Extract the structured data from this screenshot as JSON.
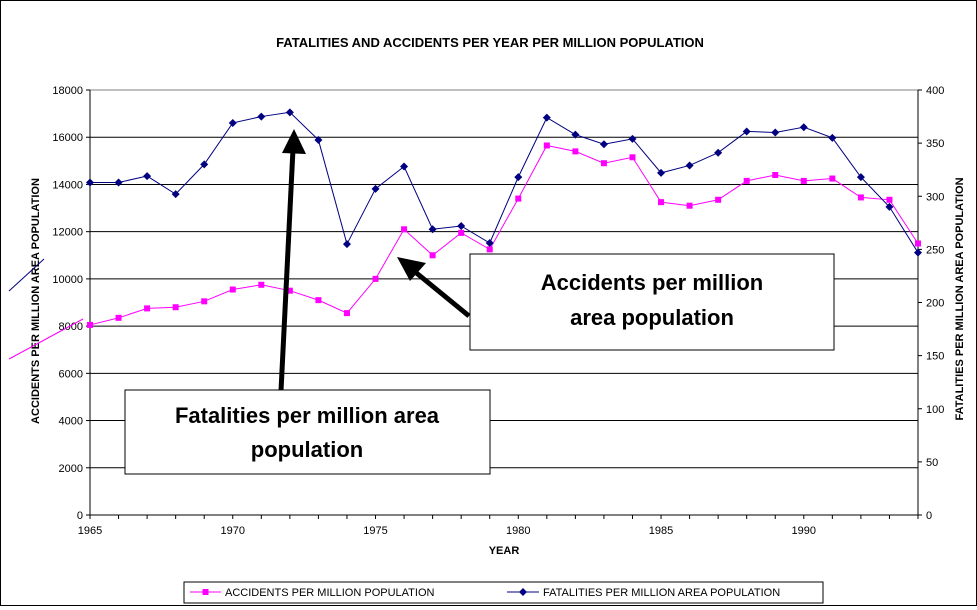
{
  "chart_data": {
    "type": "line",
    "title": "FATALITIES AND ACCIDENTS PER YEAR PER MILLION  POPULATION",
    "xlabel": "YEAR",
    "ylabel_left": "ACCIDENTS PER MILLION AREA POPULATION",
    "ylabel_right": "FATALITIES PER MILLION AREA POPULATION",
    "xlim": [
      1965,
      1994
    ],
    "x_ticks": [
      1965,
      1970,
      1975,
      1980,
      1985,
      1990
    ],
    "ylim_left": [
      0,
      18000
    ],
    "y_ticks_left": [
      0,
      2000,
      4000,
      6000,
      8000,
      10000,
      12000,
      14000,
      16000,
      18000
    ],
    "ylim_right": [
      0,
      400
    ],
    "y_ticks_right": [
      0,
      50,
      100,
      150,
      200,
      250,
      300,
      350,
      400
    ],
    "grid": "horizontal",
    "legend_position": "bottom",
    "x": [
      1965,
      1966,
      1967,
      1968,
      1969,
      1970,
      1971,
      1972,
      1973,
      1974,
      1975,
      1976,
      1977,
      1978,
      1979,
      1980,
      1981,
      1982,
      1983,
      1984,
      1985,
      1986,
      1987,
      1988,
      1989,
      1990,
      1991,
      1992,
      1993,
      1994
    ],
    "series": [
      {
        "name": "ACCIDENTS PER MILLION POPULATION",
        "axis": "left",
        "color": "#ff00ff",
        "marker": "square",
        "values": [
          8050,
          8350,
          8750,
          8800,
          9050,
          9550,
          9750,
          9500,
          9100,
          8550,
          10000,
          12100,
          11000,
          11950,
          11250,
          13400,
          15650,
          15400,
          14900,
          15150,
          13250,
          13100,
          13350,
          14150,
          14400,
          14150,
          14250,
          13450,
          13350,
          11500
        ]
      },
      {
        "name": "FATALITIES PER MILLION AREA POPULATION",
        "axis": "right",
        "color": "#000080",
        "marker": "diamond",
        "values": [
          313,
          313,
          319,
          302,
          330,
          369,
          375,
          379,
          353,
          255,
          307,
          328,
          269,
          272,
          256,
          318,
          374,
          358,
          349,
          354,
          322,
          329,
          341,
          361,
          360,
          365,
          355,
          318,
          290,
          247
        ]
      }
    ],
    "annotations": [
      {
        "text_lines": [
          "Accidents per million",
          "area population"
        ]
      },
      {
        "text_lines": [
          "Fatalities per million area",
          "population"
        ]
      }
    ]
  }
}
